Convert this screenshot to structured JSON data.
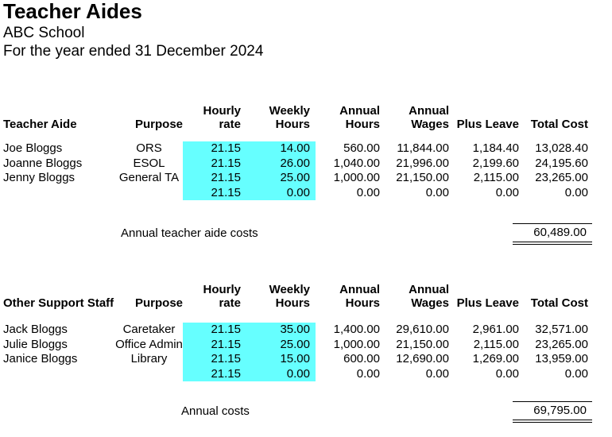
{
  "page": {
    "title": "Teacher Aides",
    "subtitle": "ABC School",
    "period": "For the year ended 31 December 2024"
  },
  "colors": {
    "highlight": "#66FFFF",
    "text": "#000000",
    "background": "#FFFFFF"
  },
  "tables": [
    {
      "name": "Teacher Aides",
      "columns": [
        {
          "line1": "",
          "line2": "Teacher Aide"
        },
        {
          "line1": "",
          "line2": "Purpose"
        },
        {
          "line1": "Hourly",
          "line2": "rate"
        },
        {
          "line1": "Weekly",
          "line2": "Hours"
        },
        {
          "line1": "Annual",
          "line2": "Hours"
        },
        {
          "line1": "Annual",
          "line2": "Wages"
        },
        {
          "line1": "",
          "line2": "Plus Leave"
        },
        {
          "line1": "",
          "line2": "Total Cost"
        }
      ],
      "rows": [
        [
          "Joe Bloggs",
          "ORS",
          "21.15",
          "14.00",
          "560.00",
          "11,844.00",
          "1,184.40",
          "13,028.40"
        ],
        [
          "Joanne Bloggs",
          "ESOL",
          "21.15",
          "26.00",
          "1,040.00",
          "21,996.00",
          "2,199.60",
          "24,195.60"
        ],
        [
          "Jenny Bloggs",
          "General TA",
          "21.15",
          "25.00",
          "1,000.00",
          "21,150.00",
          "2,115.00",
          "23,265.00"
        ],
        [
          "",
          "",
          "21.15",
          "0.00",
          "0.00",
          "0.00",
          "0.00",
          "0.00"
        ]
      ],
      "total_label": "Annual teacher aide costs",
      "total_value": "60,489.00"
    },
    {
      "name": "Other Support Staff",
      "columns": [
        {
          "line1": "",
          "line2": "Other Support Staff"
        },
        {
          "line1": "",
          "line2": "Purpose"
        },
        {
          "line1": "Hourly",
          "line2": "rate"
        },
        {
          "line1": "Weekly",
          "line2": "Hours"
        },
        {
          "line1": "Annual",
          "line2": "Hours"
        },
        {
          "line1": "Annual",
          "line2": "Wages"
        },
        {
          "line1": "",
          "line2": "Plus Leave"
        },
        {
          "line1": "",
          "line2": "Total Cost"
        }
      ],
      "rows": [
        [
          "Jack Bloggs",
          "Caretaker",
          "21.15",
          "35.00",
          "1,400.00",
          "29,610.00",
          "2,961.00",
          "32,571.00"
        ],
        [
          "Julie Bloggs",
          "Office Admin",
          "21.15",
          "25.00",
          "1,000.00",
          "21,150.00",
          "2,115.00",
          "23,265.00"
        ],
        [
          "Janice Bloggs",
          "Library",
          "21.15",
          "15.00",
          "600.00",
          "12,690.00",
          "1,269.00",
          "13,959.00"
        ],
        [
          "",
          "",
          "21.15",
          "0.00",
          "0.00",
          "0.00",
          "0.00",
          "0.00"
        ]
      ],
      "total_label": "Annual costs",
      "total_value": "69,795.00"
    }
  ]
}
